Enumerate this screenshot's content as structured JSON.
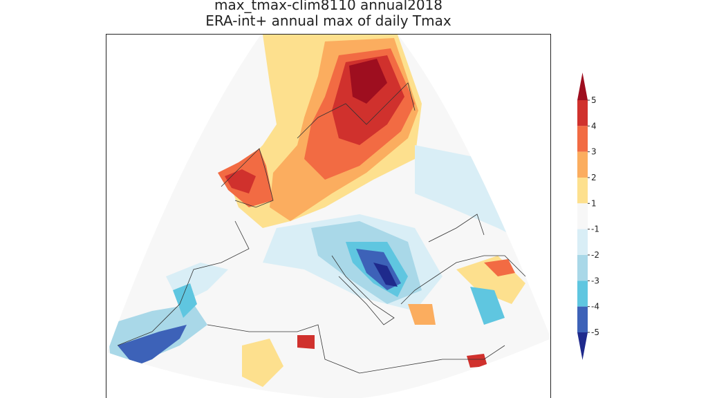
{
  "title": "max_tmax-clim8110 annual2018",
  "subtitle": "ERA-int+ annual max of daily Tmax",
  "colorbar": {
    "ticks": [
      5,
      4,
      3,
      2,
      1,
      -1,
      -2,
      -3,
      -4,
      -5
    ],
    "colors": [
      "#9e0e1f",
      "#d0312d",
      "#f26b43",
      "#fbad5f",
      "#fde08e",
      "#f7f7f7",
      "#d9eef6",
      "#a9d8e8",
      "#5fc6e0",
      "#3d62b8",
      "#1f2a8c"
    ]
  }
}
